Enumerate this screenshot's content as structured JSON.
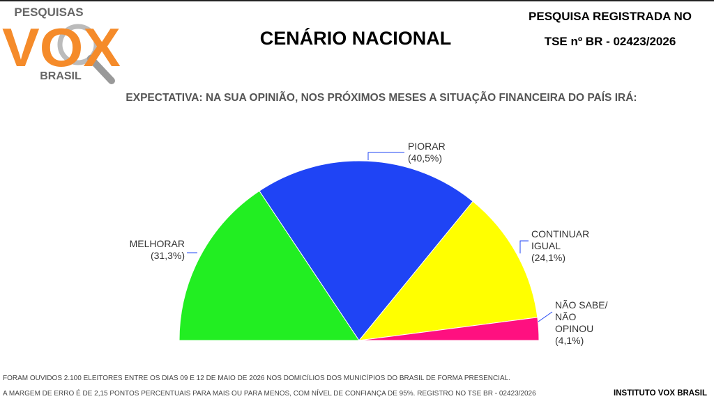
{
  "logo": {
    "top": "PESQUISAS",
    "main": "VOX",
    "bottom": "BRASIL"
  },
  "registration": {
    "line1": "PESQUISA REGISTRADA NO",
    "line2": "TSE nº BR - 02423/2026"
  },
  "chart_data": {
    "type": "semipie",
    "title": "CENÁRIO NACIONAL",
    "subtitle": "EXPECTATIVA: NA SUA OPINIÃO, NOS PRÓXIMOS MESES A SITUAÇÃO FINANCEIRA DO PAÍS IRÁ:",
    "categories": [
      "MELHORAR",
      "PIORAR",
      "CONTINUAR IGUAL",
      "NÃO SABE/ NÃO OPINOU"
    ],
    "values": [
      31.3,
      40.5,
      24.1,
      4.1
    ],
    "value_labels": [
      "(31,3%)",
      "(40,5%)",
      "(24,1%)",
      "(4,1%)"
    ],
    "colors": [
      "#22ee22",
      "#1f44f5",
      "#ffff00",
      "#ff1080"
    ]
  },
  "footer": {
    "note1": "FORAM OUVIDOS 2.100 ELEITORES ENTRE OS DIAS 09 E 12 DE MAIO DE 2026 NOS DOMICÍLIOS DOS MUNICÍPIOS DO BRASIL DE FORMA PRESENCIAL.",
    "note2": "A MARGEM DE ERRO É DE 2,15 PONTOS PERCENTUAIS PARA MAIS OU PARA MENOS, COM NÍVEL DE CONFIANÇA DE 95%. REGISTRO NO TSE BR - 02423/2026",
    "brand": "INSTITUTO VOX BRASIL"
  }
}
